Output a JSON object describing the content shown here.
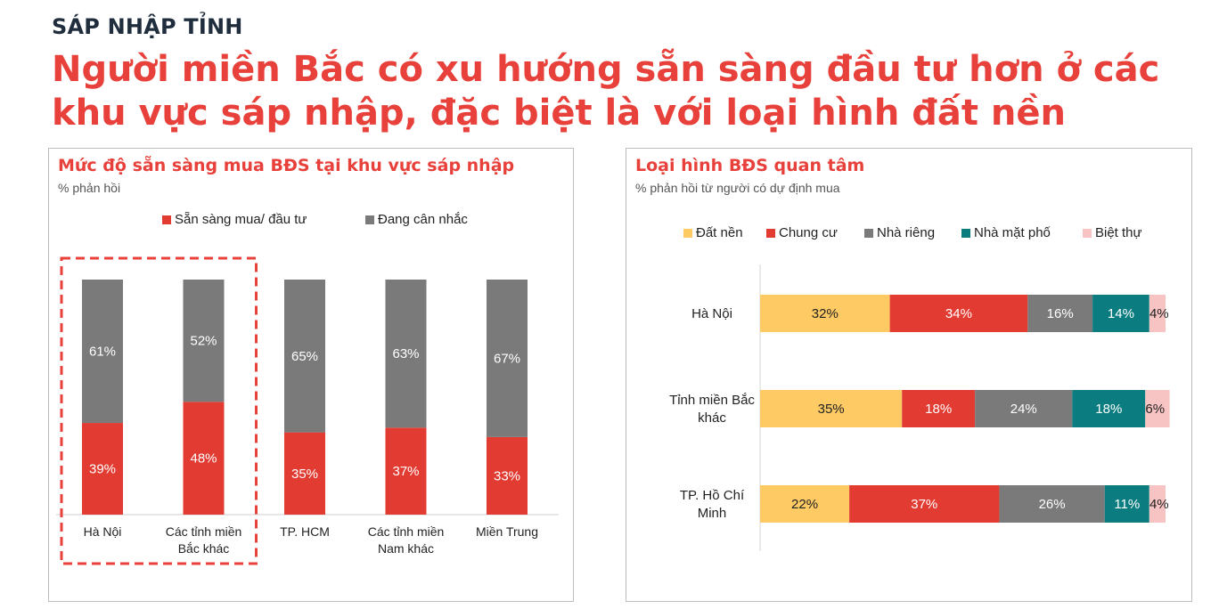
{
  "header": {
    "kicker": "SÁP NHẬP TỈNH",
    "headline": "Người miền Bắc có xu hướng sẵn sàng đầu tư hơn ở các khu vực sáp nhập, đặc biệt là với loại hình đất nền"
  },
  "colors": {
    "accent": "#e8403a",
    "red": "#e23b32",
    "gray": "#7a7a7a",
    "yellow": "#fdca63",
    "teal": "#0b7d80",
    "pink": "#f8c4c3"
  },
  "chart_data": [
    {
      "type": "bar",
      "stacked": true,
      "percent": true,
      "title": "Mức độ sẵn sàng mua BĐS tại khu vực sáp nhập",
      "subtitle": "% phản hồi",
      "legend_position": "top",
      "categories": [
        "Hà Nội",
        "Các tỉnh miền Bắc khác",
        "TP. HCM",
        "Các tỉnh miền Nam khác",
        "Miền Trung"
      ],
      "category_lines": [
        [
          "Hà Nội"
        ],
        [
          "Các tỉnh miền",
          "Bắc khác"
        ],
        [
          "TP. HCM"
        ],
        [
          "Các tỉnh miền",
          "Nam khác"
        ],
        [
          "Miền Trung"
        ]
      ],
      "series": [
        {
          "name": "Sẵn sàng mua/ đầu tư",
          "color": "#e23b32",
          "values": [
            39,
            48,
            35,
            37,
            33
          ],
          "labels": [
            "39%",
            "48%",
            "35%",
            "37%",
            "33%"
          ]
        },
        {
          "name": "Đang cân nhắc",
          "color": "#7a7a7a",
          "values": [
            61,
            52,
            65,
            63,
            67
          ],
          "labels": [
            "61%",
            "52%",
            "65%",
            "63%",
            "67%"
          ]
        }
      ],
      "highlight": [
        "Hà Nội",
        "Các tỉnh miền Bắc khác"
      ],
      "ylim": [
        0,
        100
      ]
    },
    {
      "type": "bar",
      "orientation": "horizontal",
      "stacked": true,
      "percent": true,
      "title": "Loại hình BĐS quan tâm",
      "subtitle": "% phản hồi từ người có dự định mua",
      "legend_position": "top",
      "categories": [
        "Hà Nội",
        "Tỉnh miền Bắc khác",
        "TP. Hồ Chí Minh"
      ],
      "category_lines": [
        [
          "Hà Nội"
        ],
        [
          "Tỉnh miền Bắc",
          "khác"
        ],
        [
          "TP. Hồ Chí",
          "Minh"
        ]
      ],
      "series": [
        {
          "name": "Đất nền",
          "color": "#fdca63",
          "values": [
            32,
            35,
            22
          ],
          "labels": [
            "32%",
            "35%",
            "22%"
          ]
        },
        {
          "name": "Chung cư",
          "color": "#e23b32",
          "values": [
            34,
            18,
            37
          ],
          "labels": [
            "34%",
            "18%",
            "37%"
          ]
        },
        {
          "name": "Nhà riêng",
          "color": "#7a7a7a",
          "values": [
            16,
            24,
            26
          ],
          "labels": [
            "16%",
            "24%",
            "26%"
          ]
        },
        {
          "name": "Nhà mặt phố",
          "color": "#0b7d80",
          "values": [
            14,
            18,
            11
          ],
          "labels": [
            "14%",
            "18%",
            "11%"
          ]
        },
        {
          "name": "Biệt thự",
          "color": "#f8c4c3",
          "values": [
            4,
            6,
            4
          ],
          "labels": [
            "4%",
            "6%",
            "4%"
          ]
        }
      ],
      "xlim": [
        0,
        100
      ]
    }
  ]
}
